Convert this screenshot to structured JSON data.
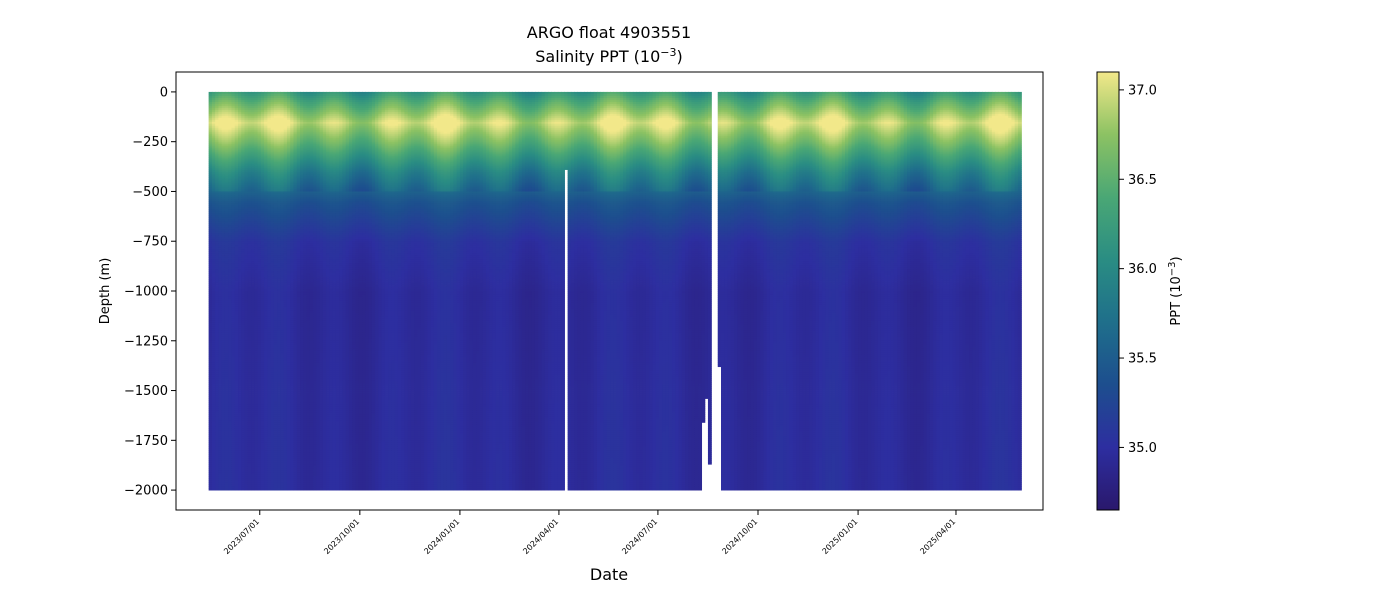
{
  "chart_data": {
    "type": "heatmap",
    "title": "ARGO float 4903551",
    "subtitle_main": "Salinity PPT (10",
    "subtitle_exp": "−3",
    "subtitle_end": ")",
    "xlabel": "Date",
    "ylabel": "Depth (m)",
    "colorbar_label_main": "PPT (10",
    "colorbar_label_exp": "−3",
    "colorbar_label_end": ")",
    "colormap": "haline",
    "colormap_stops": [
      "#2a186c",
      "#2d2ea0",
      "#1d4e8e",
      "#1f6f8b",
      "#2a8d83",
      "#4aa775",
      "#8cc263",
      "#f2e88a"
    ],
    "grid": false,
    "xlim": [
      "2023-04-15",
      "2025-06-20"
    ],
    "ylim": [
      -2100,
      100
    ],
    "clim": [
      34.65,
      37.1
    ],
    "yticks": [
      0,
      -250,
      -500,
      -750,
      -1000,
      -1250,
      -1500,
      -1750,
      -2000
    ],
    "ytick_labels": [
      "0",
      "−250",
      "−500",
      "−750",
      "−1000",
      "−1250",
      "−1500",
      "−1750",
      "−2000"
    ],
    "xticks": [
      "2023-07-01",
      "2023-10-01",
      "2024-01-01",
      "2024-04-01",
      "2024-07-01",
      "2024-10-01",
      "2025-01-01",
      "2025-04-01"
    ],
    "xtick_labels": [
      "2023/07/01",
      "2023/10/01",
      "2024/01/01",
      "2024/04/01",
      "2024/07/01",
      "2024/10/01",
      "2025/01/01",
      "2025/04/01"
    ],
    "cticks": [
      35.0,
      35.5,
      36.0,
      36.5,
      37.0
    ],
    "ctick_labels": [
      "35.0",
      "35.5",
      "36.0",
      "36.5",
      "37.0"
    ],
    "profile_period": {
      "start": "2023-05-15",
      "end": "2025-05-29"
    },
    "max_profile_depth": -1990,
    "short_profiles": [
      {
        "date": "2024-04-06",
        "max_depth": -380
      },
      {
        "date": "2024-08-10",
        "max_depth": -1650
      },
      {
        "date": "2024-08-13",
        "max_depth": -1530
      },
      {
        "date": "2024-08-16",
        "max_depth": -1860
      },
      {
        "date": "2024-08-26",
        "max_depth": -1370
      }
    ],
    "gaps": [
      {
        "start": "2024-08-18",
        "end": "2024-08-24"
      }
    ],
    "typical_profile": [
      {
        "depth": 0,
        "salinity": 36.2
      },
      {
        "depth": -50,
        "salinity": 36.5
      },
      {
        "depth": -150,
        "salinity": 37.0
      },
      {
        "depth": -250,
        "salinity": 36.6
      },
      {
        "depth": -400,
        "salinity": 35.9
      },
      {
        "depth": -550,
        "salinity": 35.4
      },
      {
        "depth": -750,
        "salinity": 35.05
      },
      {
        "depth": -1000,
        "salinity": 34.95
      },
      {
        "depth": -1500,
        "salinity": 34.97
      },
      {
        "depth": -2000,
        "salinity": 34.98
      }
    ]
  }
}
